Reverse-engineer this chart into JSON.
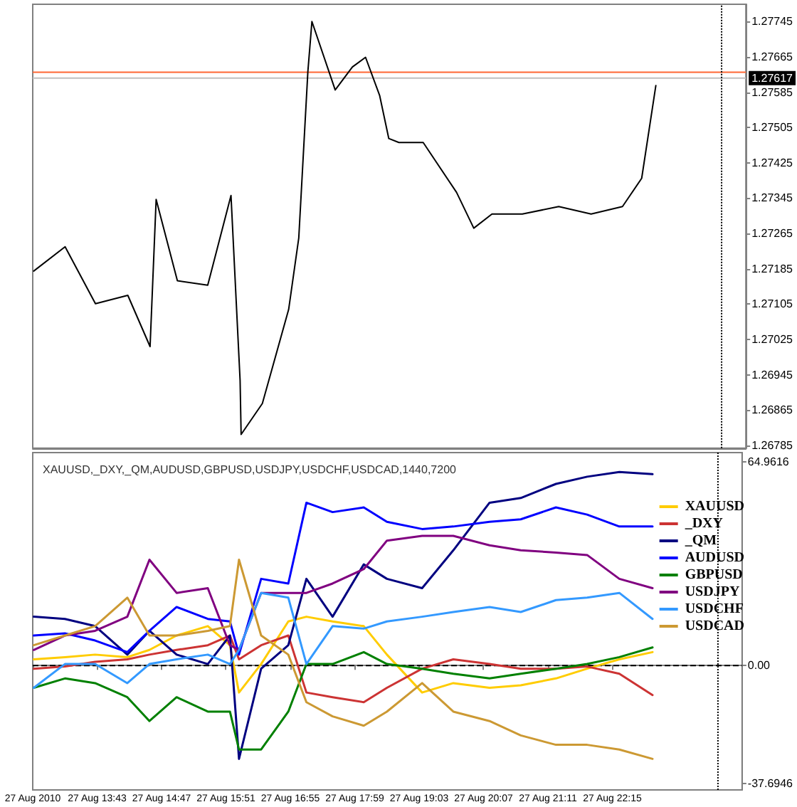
{
  "chart_data": [
    {
      "type": "line",
      "x": [
        "2010-08-27T12:40",
        "2010-08-27T13:11",
        "2010-08-27T13:41",
        "2010-08-27T14:13",
        "2010-08-27T14:35",
        "2010-08-27T14:41",
        "2010-08-27T15:02",
        "2010-08-27T15:32",
        "2010-08-27T15:55",
        "2010-08-27T16:04",
        "2010-08-27T16:05",
        "2010-08-27T16:26",
        "2010-08-27T16:52",
        "2010-08-27T17:02",
        "2010-08-27T17:11",
        "2010-08-27T17:15",
        "2010-08-27T17:38",
        "2010-08-27T17:55",
        "2010-08-27T18:08",
        "2010-08-27T18:22",
        "2010-08-27T18:31",
        "2010-08-27T18:41",
        "2010-08-27T19:05",
        "2010-08-27T19:38",
        "2010-08-27T19:55",
        "2010-08-27T20:13",
        "2010-08-27T20:43",
        "2010-08-27T21:19",
        "2010-08-27T21:51",
        "2010-08-27T22:22",
        "2010-08-27T22:41",
        "2010-08-27T22:55"
      ],
      "series": [
        {
          "color": "#000000",
          "values": [
            1.2718,
            1.27235,
            1.27106,
            1.27125,
            1.27009,
            1.27342,
            1.27158,
            1.27148,
            1.27351,
            1.26932,
            1.2681,
            1.2688,
            1.27093,
            1.27255,
            1.27632,
            1.27745,
            1.2759,
            1.27642,
            1.27664,
            1.27577,
            1.2748,
            1.27471,
            1.27471,
            1.27358,
            1.27277,
            1.27309,
            1.27309,
            1.27326,
            1.27309,
            1.27326,
            1.2739,
            1.276
          ]
        }
      ],
      "xlim": [
        "2010-08-27T12:39",
        "2010-08-28T00:24"
      ],
      "ylim": [
        1.26779,
        1.27784
      ],
      "yticks": [
        1.26785,
        1.26865,
        1.26945,
        1.27025,
        1.27105,
        1.27185,
        1.27265,
        1.27345,
        1.27425,
        1.27505,
        1.27585,
        1.27665,
        1.27745
      ],
      "tick_labels": "y",
      "grid": false,
      "marker": "none",
      "ref_lines": [
        {
          "axis": "y",
          "value": 1.2763,
          "color": "#ff6633",
          "line_style": "solid"
        },
        {
          "axis": "y",
          "value": 1.27617,
          "label": "1.27617",
          "color": "#c0c0c0",
          "line_style": "solid"
        },
        {
          "axis": "x",
          "value": "2010-08-28T00:00",
          "color": "#000000",
          "line_style": "dotted"
        }
      ]
    },
    {
      "type": "line",
      "title": "XAUUSD,_DXY,_QM,AUDUSD,GBPUSD,USDJPY,USDCHF,USDCAD,1440,7200",
      "x": [
        "2010-08-27T12:40",
        "2010-08-27T13:11",
        "2010-08-27T13:41",
        "2010-08-27T14:13",
        "2010-08-27T14:35",
        "2010-08-27T15:02",
        "2010-08-27T15:33",
        "2010-08-27T15:55",
        "2010-08-27T16:04",
        "2010-08-27T16:26",
        "2010-08-27T16:53",
        "2010-08-27T17:11",
        "2010-08-27T17:37",
        "2010-08-27T18:08",
        "2010-08-27T18:31",
        "2010-08-27T19:06",
        "2010-08-27T19:37",
        "2010-08-27T20:13",
        "2010-08-27T20:44",
        "2010-08-27T21:19",
        "2010-08-27T21:50",
        "2010-08-27T22:22",
        "2010-08-27T22:55"
      ],
      "series": [
        {
          "name": "XAUUSD",
          "color": "#ffcc00",
          "values": [
            2.0,
            2.7,
            3.5,
            2.7,
            5.0,
            9.6,
            12.6,
            6.5,
            -8.6,
            0.5,
            14.1,
            15.6,
            14.1,
            12.6,
            3.5,
            -8.6,
            -5.6,
            -7.1,
            -6.3,
            -4.1,
            -1.0,
            2.0,
            4.3
          ]
        },
        {
          "name": "_DXY",
          "color": "#cc3333",
          "values": [
            -1.0,
            -0.3,
            1.2,
            2.0,
            3.5,
            5.0,
            6.5,
            9.6,
            2.0,
            6.5,
            9.6,
            -8.6,
            -10.1,
            -11.7,
            -7.1,
            -1.0,
            2.0,
            0.5,
            -1.0,
            -1.0,
            -0.3,
            -2.6,
            -9.4
          ]
        },
        {
          "name": "_QM",
          "color": "#000080",
          "values": [
            15.6,
            14.9,
            12.6,
            3.5,
            11.1,
            3.5,
            0.5,
            9.6,
            -29.8,
            -1.0,
            6.5,
            27.7,
            15.6,
            32.3,
            27.7,
            24.7,
            36.8,
            52.0,
            53.5,
            58.0,
            60.3,
            61.8,
            61.1
          ]
        },
        {
          "name": "AUDUSD",
          "color": "#0000ff",
          "values": [
            9.6,
            10.3,
            8.0,
            4.3,
            11.1,
            18.7,
            14.9,
            14.1,
            3.5,
            27.7,
            26.2,
            52.0,
            49.0,
            50.5,
            45.9,
            43.6,
            44.4,
            45.9,
            46.7,
            50.5,
            48.2,
            44.4,
            44.4
          ]
        },
        {
          "name": "GBPUSD",
          "color": "#008000",
          "values": [
            -7.1,
            -4.1,
            -5.6,
            -10.1,
            -17.7,
            -10.1,
            -14.7,
            -14.7,
            -26.8,
            -26.8,
            -14.7,
            0.5,
            0.5,
            4.3,
            0.5,
            -1.0,
            -2.6,
            -4.1,
            -2.6,
            -1.0,
            0.5,
            2.7,
            5.8
          ]
        },
        {
          "name": "USDJPY",
          "color": "#800080",
          "values": [
            5.0,
            9.6,
            11.1,
            15.6,
            33.8,
            23.2,
            24.7,
            6.5,
            5.0,
            23.2,
            23.2,
            23.2,
            26.2,
            30.8,
            39.9,
            41.4,
            41.4,
            38.4,
            36.8,
            36.1,
            35.3,
            27.7,
            24.7
          ]
        },
        {
          "name": "USDCHF",
          "color": "#3399ff",
          "values": [
            -7.1,
            0.5,
            0.5,
            -5.6,
            0.5,
            2.0,
            3.5,
            0.5,
            5.0,
            23.2,
            21.7,
            0.5,
            12.6,
            11.8,
            14.1,
            15.6,
            17.1,
            18.7,
            17.1,
            20.9,
            21.7,
            23.2,
            14.9
          ]
        },
        {
          "name": "USDCAD",
          "color": "#cc9933",
          "values": [
            6.5,
            9.6,
            12.6,
            21.7,
            9.6,
            9.6,
            11.1,
            12.6,
            33.8,
            9.6,
            3.5,
            -11.7,
            -16.2,
            -19.2,
            -14.7,
            -5.6,
            -14.7,
            -17.7,
            -22.3,
            -25.3,
            -25.3,
            -26.8,
            -29.8
          ]
        }
      ],
      "xlim": [
        "2010-08-27T12:39",
        "2010-08-28T00:24"
      ],
      "xticks": [
        {
          "value": "2010-08-27T12:39",
          "label": "27 Aug 2010"
        },
        {
          "value": "2010-08-27T13:43",
          "label": "27 Aug 13:43"
        },
        {
          "value": "2010-08-27T14:47",
          "label": "27 Aug 14:47"
        },
        {
          "value": "2010-08-27T15:51",
          "label": "27 Aug 15:51"
        },
        {
          "value": "2010-08-27T16:55",
          "label": "27 Aug 16:55"
        },
        {
          "value": "2010-08-27T17:59",
          "label": "27 Aug 17:59"
        },
        {
          "value": "2010-08-27T19:03",
          "label": "27 Aug 19:03"
        },
        {
          "value": "2010-08-27T20:07",
          "label": "27 Aug 20:07"
        },
        {
          "value": "2010-08-27T21:11",
          "label": "27 Aug 21:11"
        },
        {
          "value": "2010-08-27T22:15",
          "label": "27 Aug 22:15"
        }
      ],
      "ylim": [
        -39.7,
        68.0
      ],
      "yticks": [
        -37.6946,
        {
          "value": 0,
          "label": "0.00"
        },
        64.9616
      ],
      "grid": false,
      "legend": "right",
      "marker": "none",
      "ref_lines": [
        {
          "axis": "y",
          "value": 0,
          "color": "#000000",
          "line_style": "dashed"
        },
        {
          "axis": "x",
          "value": "2010-08-28T00:00",
          "color": "#000000",
          "line_style": "dotted"
        }
      ]
    }
  ]
}
